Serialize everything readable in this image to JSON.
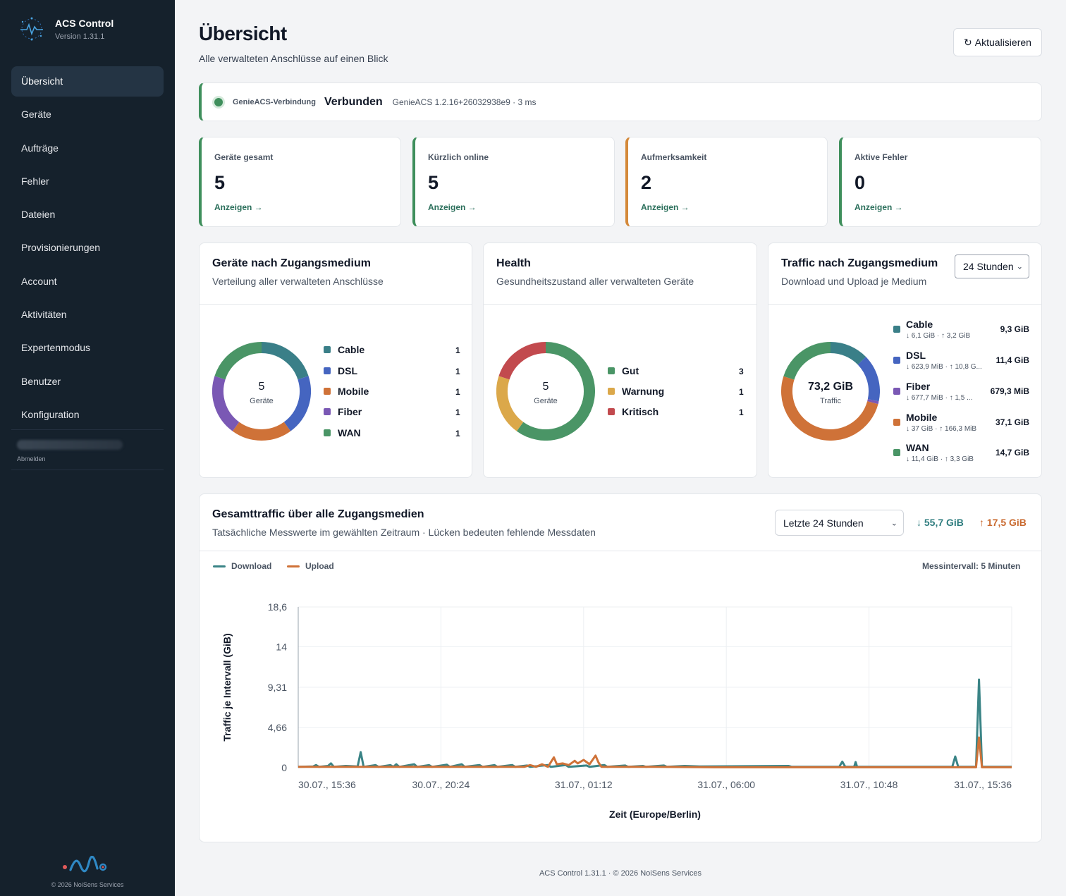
{
  "sidebar": {
    "app_name": "ACS Control",
    "version": "Version 1.31.1",
    "items": [
      {
        "label": "Übersicht",
        "active": true
      },
      {
        "label": "Geräte"
      },
      {
        "label": "Aufträge"
      },
      {
        "label": "Fehler"
      },
      {
        "label": "Dateien"
      },
      {
        "label": "Provisionierungen"
      },
      {
        "label": "Account"
      },
      {
        "label": "Aktivitäten"
      },
      {
        "label": "Expertenmodus"
      },
      {
        "label": "Benutzer"
      },
      {
        "label": "Konfiguration"
      }
    ],
    "logout_label": "Abmelden",
    "copyright": "© 2026 NoiSens Services"
  },
  "header": {
    "title": "Übersicht",
    "subtitle": "Alle verwalteten Anschlüsse auf einen Blick",
    "refresh_label": "Aktualisieren",
    "refresh_icon": "refresh-icon"
  },
  "connection": {
    "label": "GenieACS-Verbindung",
    "status": "Verbunden",
    "meta": "GenieACS 1.2.16+26032938e9 · 3 ms",
    "color": "#3f8f5c"
  },
  "stats": [
    {
      "label": "Geräte gesamt",
      "value": "5",
      "link": "Anzeigen →"
    },
    {
      "label": "Kürzlich online",
      "value": "5",
      "link": "Anzeigen →"
    },
    {
      "label": "Aufmerksamkeit",
      "value": "2",
      "link": "Anzeigen →"
    },
    {
      "label": "Aktive Fehler",
      "value": "0",
      "link": "Anzeigen →"
    }
  ],
  "medium_card": {
    "title": "Geräte nach Zugangsmedium",
    "subtitle": "Verteilung aller verwalteten Anschlüsse",
    "center_value": "5",
    "center_label": "Geräte",
    "items": [
      {
        "name": "Cable",
        "value": "1",
        "color": "#3a7f88"
      },
      {
        "name": "DSL",
        "value": "1",
        "color": "#4565c0"
      },
      {
        "name": "Mobile",
        "value": "1",
        "color": "#cf7238"
      },
      {
        "name": "Fiber",
        "value": "1",
        "color": "#7a58b4"
      },
      {
        "name": "WAN",
        "value": "1",
        "color": "#4a9566"
      }
    ]
  },
  "health_card": {
    "title": "Health",
    "subtitle": "Gesundheitszustand aller verwalteten Geräte",
    "center_value": "5",
    "center_label": "Geräte",
    "items": [
      {
        "name": "Gut",
        "value": "3",
        "color": "#4a9566"
      },
      {
        "name": "Warnung",
        "value": "1",
        "color": "#dba84a"
      },
      {
        "name": "Kritisch",
        "value": "1",
        "color": "#c24a4e"
      }
    ]
  },
  "traffic_card": {
    "title": "Traffic nach Zugangsmedium",
    "subtitle": "Download und Upload je Medium",
    "range_select": "24 Stunden",
    "center_value": "73,2 GiB",
    "center_label": "Traffic",
    "items": [
      {
        "name": "Cable",
        "detail": "↓ 6,1 GiB · ↑ 3,2 GiB",
        "total": "9,3 GiB",
        "total_gib": 9.3,
        "color": "#3a7f88"
      },
      {
        "name": "DSL",
        "detail": "↓ 623,9 MiB · ↑ 10,8 G...",
        "total": "11,4 GiB",
        "total_gib": 11.4,
        "color": "#4565c0"
      },
      {
        "name": "Fiber",
        "detail": "↓ 677,7 MiB · ↑ 1,5 ...",
        "total": "679,3 MiB",
        "total_gib": 0.66,
        "color": "#7a58b4"
      },
      {
        "name": "Mobile",
        "detail": "↓ 37 GiB · ↑ 166,3 MiB",
        "total": "37,1 GiB",
        "total_gib": 37.1,
        "color": "#cf7238"
      },
      {
        "name": "WAN",
        "detail": "↓ 11,4 GiB · ↑ 3,3 GiB",
        "total": "14,7 GiB",
        "total_gib": 14.7,
        "color": "#4a9566"
      }
    ]
  },
  "total_card": {
    "title": "Gesamttraffic über alle Zugangsmedien",
    "subtitle": "Tatsächliche Messwerte im gewählten Zeitraum · Lücken bedeuten fehlende Messdaten",
    "range_select": "Letzte 24 Stunden",
    "download_total": "↓ 55,7 GiB",
    "upload_total": "↑ 17,5 GiB",
    "legend_download": "Download",
    "legend_upload": "Upload",
    "interval": "Messintervall: 5 Minuten"
  },
  "chart_data": {
    "type": "line",
    "xlabel": "Zeit (Europe/Berlin)",
    "ylabel": "Traffic je Intervall (GiB)",
    "yticks": [
      "0",
      "4,66",
      "9,31",
      "14",
      "18,6"
    ],
    "ytick_values": [
      0,
      4.66,
      9.31,
      14,
      18.6
    ],
    "ylim": [
      0,
      18.6
    ],
    "xticks": [
      "30.07., 15:36",
      "30.07., 20:24",
      "31.07., 01:12",
      "31.07., 06:00",
      "31.07., 10:48",
      "31.07., 15:36"
    ],
    "x_unit": "hours since 30.07., 15:36",
    "xlim": [
      0,
      24
    ],
    "grid": true,
    "series": [
      {
        "name": "Download",
        "color": "#3a8486",
        "points": [
          [
            0,
            0.1
          ],
          [
            0.5,
            0.15
          ],
          [
            0.6,
            0.3
          ],
          [
            0.7,
            0.1
          ],
          [
            1.0,
            0.2
          ],
          [
            1.1,
            0.5
          ],
          [
            1.2,
            0.1
          ],
          [
            1.6,
            0.2
          ],
          [
            2.0,
            0.15
          ],
          [
            2.1,
            1.8
          ],
          [
            2.2,
            0.1
          ],
          [
            2.6,
            0.3
          ],
          [
            2.7,
            0.1
          ],
          [
            3.1,
            0.3
          ],
          [
            3.2,
            0.1
          ],
          [
            3.3,
            0.4
          ],
          [
            3.4,
            0.1
          ],
          [
            3.9,
            0.4
          ],
          [
            4.0,
            0.1
          ],
          [
            4.4,
            0.3
          ],
          [
            4.5,
            0.1
          ],
          [
            5.0,
            0.35
          ],
          [
            5.1,
            0.1
          ],
          [
            5.5,
            0.4
          ],
          [
            5.6,
            0.1
          ],
          [
            6.1,
            0.3
          ],
          [
            6.2,
            0.1
          ],
          [
            6.6,
            0.3
          ],
          [
            6.7,
            0.1
          ],
          [
            7.2,
            0.3
          ],
          [
            7.3,
            0.1
          ],
          [
            7.7,
            0.25
          ],
          [
            7.8,
            0.1
          ],
          [
            8.4,
            0.3
          ],
          [
            8.5,
            0.1
          ],
          [
            9.0,
            0.3
          ],
          [
            9.1,
            0.1
          ],
          [
            9.7,
            0.25
          ],
          [
            9.8,
            0.1
          ],
          [
            10.3,
            0.3
          ],
          [
            10.4,
            0.1
          ],
          [
            11.0,
            0.25
          ],
          [
            11.1,
            0.1
          ],
          [
            11.6,
            0.2
          ],
          [
            11.7,
            0.1
          ],
          [
            12.3,
            0.25
          ],
          [
            12.4,
            0.1
          ],
          [
            13.0,
            0.2
          ],
          [
            13.5,
            0.15
          ],
          [
            16.5,
            0.2
          ],
          [
            16.6,
            0.1
          ],
          [
            18.2,
            0.1
          ],
          [
            18.3,
            0.7
          ],
          [
            18.4,
            0.1
          ],
          [
            18.7,
            0.1
          ],
          [
            18.75,
            0.65
          ],
          [
            18.8,
            0.1
          ],
          [
            22.0,
            0.1
          ],
          [
            22.1,
            1.3
          ],
          [
            22.2,
            0.1
          ],
          [
            22.8,
            0.1
          ],
          [
            22.9,
            10.2
          ],
          [
            23.0,
            0.1
          ],
          [
            24,
            0.1
          ]
        ]
      },
      {
        "name": "Upload",
        "color": "#cf7238",
        "points": [
          [
            0,
            0.1
          ],
          [
            2.0,
            0.1
          ],
          [
            4.0,
            0.1
          ],
          [
            6.0,
            0.1
          ],
          [
            7.6,
            0.1
          ],
          [
            7.8,
            0.3
          ],
          [
            8.0,
            0.1
          ],
          [
            8.2,
            0.4
          ],
          [
            8.4,
            0.1
          ],
          [
            8.6,
            1.2
          ],
          [
            8.7,
            0.4
          ],
          [
            8.9,
            0.5
          ],
          [
            9.1,
            0.3
          ],
          [
            9.3,
            0.8
          ],
          [
            9.4,
            0.5
          ],
          [
            9.6,
            0.9
          ],
          [
            9.8,
            0.4
          ],
          [
            10.0,
            1.4
          ],
          [
            10.1,
            0.6
          ],
          [
            10.2,
            0.1
          ],
          [
            12.0,
            0.1
          ],
          [
            14.0,
            0.05
          ],
          [
            17.0,
            0.05
          ],
          [
            20.0,
            0.05
          ],
          [
            22.8,
            0.05
          ],
          [
            22.9,
            3.5
          ],
          [
            23.0,
            0.05
          ],
          [
            24,
            0.05
          ]
        ]
      }
    ]
  }
}
